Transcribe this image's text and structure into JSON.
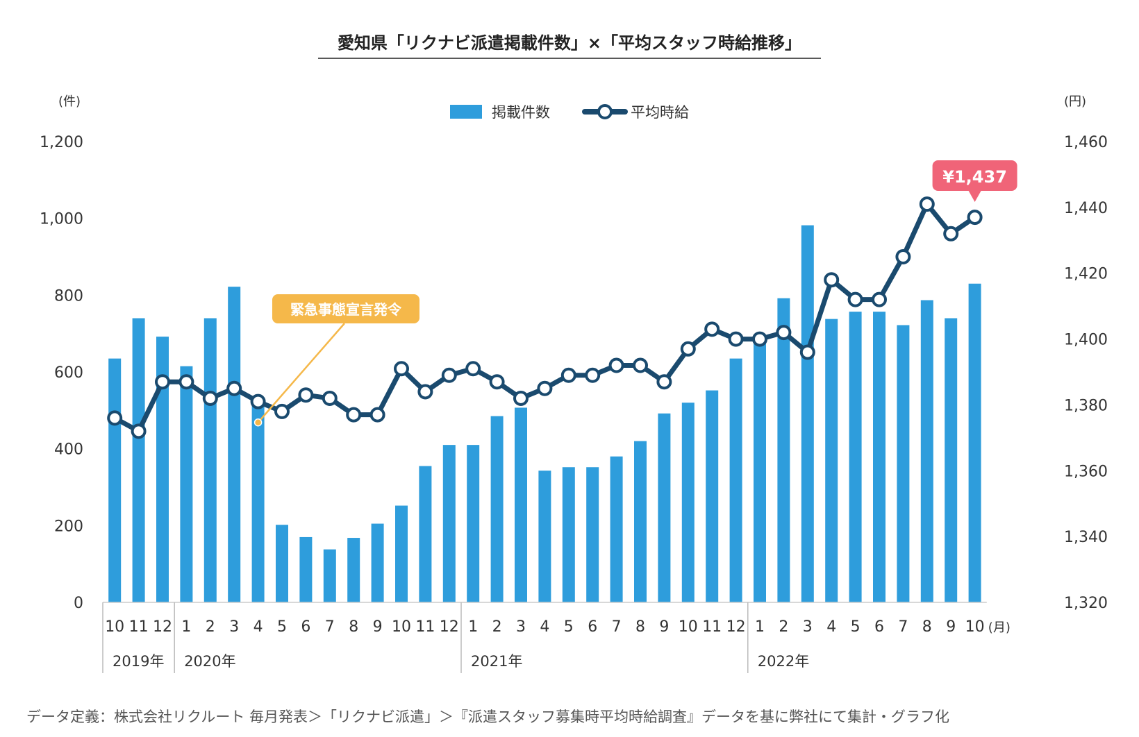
{
  "chart_data": {
    "type": "bar+line",
    "title": "愛知県「リクナビ派遣掲載件数」×「平均スタッフ時給推移」",
    "left_axis": {
      "unit": "(件)",
      "ylim": [
        0,
        1200
      ],
      "ticks": [
        "0",
        "200",
        "400",
        "600",
        "800",
        "1,000",
        "1,200"
      ]
    },
    "right_axis": {
      "unit": "(円)",
      "ylim": [
        1320,
        1460
      ],
      "ticks": [
        "1,320",
        "1,340",
        "1,360",
        "1,380",
        "1,400",
        "1,420",
        "1,440",
        "1,460"
      ]
    },
    "x_unit": "(月)",
    "categories": [
      "10",
      "11",
      "12",
      "1",
      "2",
      "3",
      "4",
      "5",
      "6",
      "7",
      "8",
      "9",
      "10",
      "11",
      "12",
      "1",
      "2",
      "3",
      "4",
      "5",
      "6",
      "7",
      "8",
      "9",
      "10",
      "11",
      "12",
      "1",
      "2",
      "3",
      "4",
      "5",
      "6",
      "7",
      "8",
      "9",
      "10"
    ],
    "years": [
      {
        "label": "2019年",
        "start": 0
      },
      {
        "label": "2020年",
        "start": 3
      },
      {
        "label": "2021年",
        "start": 15
      },
      {
        "label": "2022年",
        "start": 27
      }
    ],
    "series": [
      {
        "name": "掲載件数",
        "type": "bar",
        "axis": "left",
        "color": "#2e9ddc",
        "values": [
          635,
          740,
          692,
          615,
          740,
          822,
          520,
          202,
          170,
          138,
          168,
          205,
          252,
          355,
          410,
          410,
          485,
          507,
          343,
          352,
          352,
          380,
          420,
          492,
          520,
          552,
          635,
          690,
          792,
          982,
          738,
          757,
          757,
          722,
          787,
          740,
          830
        ]
      },
      {
        "name": "平均時給",
        "type": "line",
        "axis": "right",
        "color": "#1a4a6e",
        "values": [
          1376,
          1372,
          1387,
          1387,
          1382,
          1385,
          1381,
          1378,
          1383,
          1382,
          1377,
          1377,
          1391,
          1384,
          1389,
          1391,
          1387,
          1382,
          1385,
          1389,
          1389,
          1392,
          1392,
          1387,
          1397,
          1403,
          1400,
          1400,
          1402,
          1396,
          1418,
          1412,
          1412,
          1425,
          1441,
          1432,
          1437
        ]
      }
    ],
    "annotations": {
      "emergency": {
        "label": "緊急事態宣言発令",
        "index": 6,
        "color": "#f5b84a"
      },
      "latest_price": {
        "label": "¥1,437",
        "index": 36,
        "color": "#f06478"
      }
    },
    "legend": "top-center",
    "grid": false
  },
  "footnote": "データ定義：株式会社リクルート 毎月発表＞「リクナビ派遣」＞『派遣スタッフ募集時平均時給調査』データを基に弊社にて集計・グラフ化"
}
